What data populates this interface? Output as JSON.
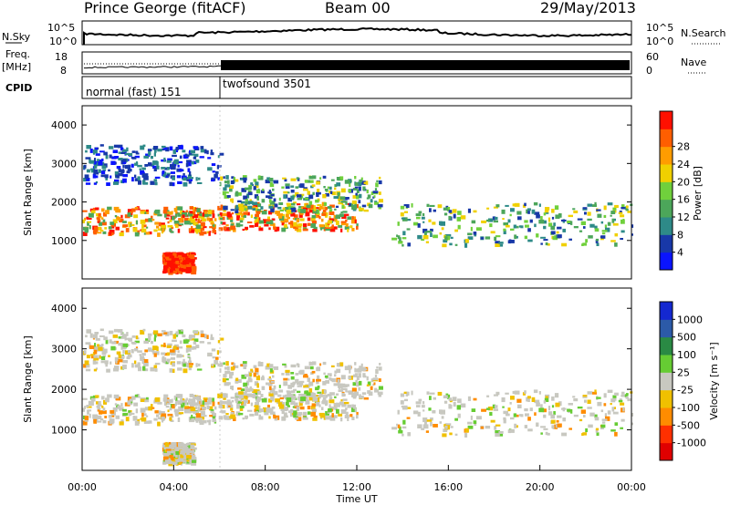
{
  "header": {
    "station": "Prince George (fitACF)",
    "beam": "Beam 00",
    "date": "29/May/2013"
  },
  "status_panels": {
    "nsky_label": "N.Sky",
    "nsky_ticks": [
      "10^5",
      "10^0"
    ],
    "nsearch_label": "N.Search",
    "freq_label": "Freq.",
    "freq_unit": "[MHz]",
    "freq_ticks": [
      "18",
      "8"
    ],
    "nave_label": "Nave",
    "nave_ticks": [
      "60",
      "0"
    ],
    "cpid_label": "CPID",
    "cpid_segments": [
      {
        "label": "normal (fast) 151",
        "start_h": 0,
        "end_h": 6
      },
      {
        "label": "twofsound 3501",
        "start_h": 6,
        "end_h": 24
      }
    ]
  },
  "colors": {
    "power_scale": [
      "#0a14ff",
      "#1838a8",
      "#2e8a88",
      "#4ca65a",
      "#70d03c",
      "#f0d000",
      "#ff9c00",
      "#ff5e00",
      "#ff1000"
    ],
    "velocity_scale": [
      "#1428d0",
      "#2c5aa8",
      "#2a8a44",
      "#66cc33",
      "#c8c8c0",
      "#f0c000",
      "#ff8c00",
      "#ff3000",
      "#e00000"
    ]
  },
  "chart_data": [
    {
      "type": "heatmap",
      "name": "power",
      "ylabel": "Slant Range [km]",
      "ylim": [
        0,
        4500
      ],
      "yticks": [
        1000,
        2000,
        3000,
        4000
      ],
      "xlim": [
        0,
        24
      ],
      "colorbar": {
        "label": "Power [dB]",
        "ticks": [
          4,
          8,
          12,
          16,
          20,
          24,
          28
        ]
      },
      "echo_regions": [
        {
          "t0": 0.0,
          "t1": 5.8,
          "r0": 1200,
          "r1": 1900,
          "level": "high"
        },
        {
          "t0": 5.8,
          "t1": 12.0,
          "r0": 1300,
          "r1": 2000,
          "level": "high"
        },
        {
          "t0": 3.5,
          "t1": 4.8,
          "r0": 200,
          "r1": 700,
          "level": "very high"
        },
        {
          "t0": 0.0,
          "t1": 6.0,
          "r0": 2500,
          "r1": 3500,
          "level": "low"
        },
        {
          "t0": 6.0,
          "t1": 13.0,
          "r0": 1800,
          "r1": 2700,
          "level": "medium"
        },
        {
          "t0": 13.5,
          "t1": 24.0,
          "r0": 900,
          "r1": 2000,
          "level": "medium"
        }
      ]
    },
    {
      "type": "heatmap",
      "name": "velocity",
      "ylabel": "Slant Range [km]",
      "xlabel": "Time UT",
      "ylim": [
        0,
        4500
      ],
      "yticks": [
        1000,
        2000,
        3000,
        4000
      ],
      "xlim": [
        0,
        24
      ],
      "xticks": [
        "00:00",
        "04:00",
        "08:00",
        "12:00",
        "16:00",
        "20:00",
        "00:00"
      ],
      "colorbar": {
        "label": "Velocity [m s⁻¹]",
        "ticks": [
          1000,
          500,
          100,
          25,
          -25,
          -100,
          -500,
          -1000
        ]
      }
    }
  ]
}
